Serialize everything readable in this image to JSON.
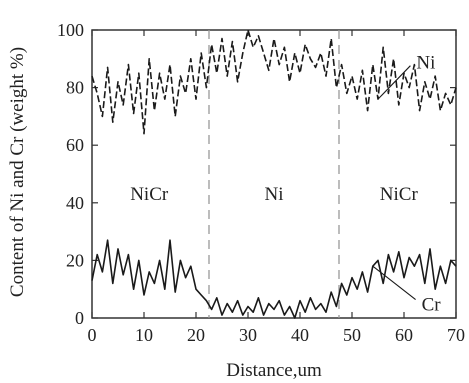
{
  "chart_data": {
    "type": "line",
    "xlabel": "Distance,um",
    "ylabel": "Content of Ni and Cr (weight %)",
    "xlim": [
      0,
      70
    ],
    "ylim": [
      0,
      100
    ],
    "xticks": [
      "0",
      "10",
      "20",
      "30",
      "40",
      "50",
      "60",
      "70"
    ],
    "yticks": [
      "0",
      "20",
      "40",
      "60",
      "80",
      "100"
    ],
    "grid": false,
    "series": [
      {
        "name": "Ni",
        "dash": "dashed",
        "x": [
          0,
          1,
          2,
          3,
          4,
          5,
          6,
          7,
          8,
          9,
          10,
          11,
          12,
          13,
          14,
          15,
          16,
          17,
          18,
          19,
          20,
          21,
          22,
          23,
          24,
          25,
          26,
          27,
          28,
          29,
          30,
          31,
          32,
          33,
          34,
          35,
          36,
          37,
          38,
          39,
          40,
          41,
          42,
          43,
          44,
          45,
          46,
          47,
          48,
          49,
          50,
          51,
          52,
          53,
          54,
          55,
          56,
          57,
          58,
          59,
          60,
          61,
          62,
          63,
          64,
          65,
          66,
          67,
          68,
          69,
          70
        ],
        "values": [
          84,
          78,
          70,
          87,
          68,
          82,
          74,
          88,
          71,
          85,
          64,
          90,
          72,
          85,
          76,
          88,
          70,
          84,
          78,
          90,
          76,
          92,
          80,
          95,
          85,
          97,
          84,
          96,
          82,
          92,
          100,
          94,
          98,
          92,
          86,
          97,
          88,
          94,
          82,
          92,
          85,
          95,
          90,
          87,
          92,
          84,
          97,
          80,
          88,
          78,
          84,
          76,
          86,
          72,
          88,
          76,
          94,
          78,
          90,
          74,
          85,
          80,
          88,
          72,
          82,
          76,
          84,
          72,
          78,
          74,
          80
        ]
      },
      {
        "name": "Cr",
        "dash": "solid",
        "x": [
          0,
          1,
          2,
          3,
          4,
          5,
          6,
          7,
          8,
          9,
          10,
          11,
          12,
          13,
          14,
          15,
          16,
          17,
          18,
          19,
          20,
          21,
          22,
          23,
          24,
          25,
          26,
          27,
          28,
          29,
          30,
          31,
          32,
          33,
          34,
          35,
          36,
          37,
          38,
          39,
          40,
          41,
          42,
          43,
          44,
          45,
          46,
          47,
          48,
          49,
          50,
          51,
          52,
          53,
          54,
          55,
          56,
          57,
          58,
          59,
          60,
          61,
          62,
          63,
          64,
          65,
          66,
          67,
          68,
          69,
          70
        ],
        "values": [
          13,
          22,
          16,
          27,
          12,
          24,
          15,
          22,
          10,
          20,
          8,
          16,
          12,
          20,
          10,
          27,
          9,
          20,
          14,
          18,
          10,
          8,
          6,
          3,
          7,
          1,
          5,
          2,
          6,
          1,
          4,
          2,
          7,
          1,
          5,
          3,
          6,
          1,
          4,
          0,
          6,
          2,
          7,
          3,
          5,
          2,
          9,
          4,
          12,
          8,
          14,
          10,
          16,
          9,
          18,
          20,
          12,
          22,
          16,
          23,
          14,
          21,
          18,
          22,
          12,
          24,
          10,
          18,
          12,
          20,
          18
        ]
      }
    ],
    "boundaries": [
      22.5,
      47.5
    ],
    "regions": [
      {
        "label": "NiCr",
        "x": 11
      },
      {
        "label": "Ni",
        "x": 35
      },
      {
        "label": "NiCr",
        "x": 59
      }
    ],
    "region_label_y": 43,
    "annotations": [
      {
        "text": "Ni",
        "series": "Ni",
        "at_x": 55,
        "label_x": 62,
        "label_y": 89
      },
      {
        "text": "Cr",
        "series": "Cr",
        "at_x": 54,
        "label_x": 63,
        "label_y": 5
      }
    ]
  }
}
